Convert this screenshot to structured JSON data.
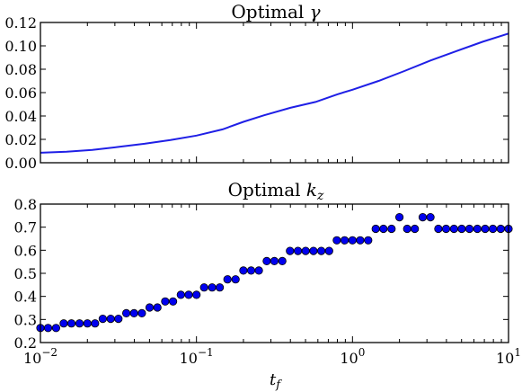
{
  "chart_data": [
    {
      "type": "line",
      "title": "Optimal γ",
      "title_text": "Optimal ",
      "title_symbol": "γ",
      "xscale": "log",
      "xlim": [
        0.01,
        10
      ],
      "ylim": [
        0.0,
        0.12
      ],
      "yticks": [
        0.0,
        0.02,
        0.04,
        0.06,
        0.08,
        0.1,
        0.12
      ],
      "ytick_labels": [
        "0.00",
        "0.02",
        "0.04",
        "0.06",
        "0.08",
        "0.10",
        "0.12"
      ],
      "line_color": "#1f1fe6",
      "series": [
        {
          "x": [
            0.01,
            0.0147,
            0.0215,
            0.0316,
            0.0464,
            0.0681,
            0.1,
            0.147,
            0.2,
            0.27,
            0.4,
            0.58,
            0.8,
            1.0,
            1.47,
            2.15,
            3.16,
            4.64,
            6.81,
            10
          ],
          "y": [
            0.0085,
            0.0095,
            0.011,
            0.0135,
            0.0162,
            0.0195,
            0.0232,
            0.0285,
            0.035,
            0.0405,
            0.047,
            0.052,
            0.0585,
            0.0625,
            0.07,
            0.0785,
            0.0875,
            0.0955,
            0.1035,
            0.1105
          ]
        }
      ]
    },
    {
      "type": "scatter",
      "title": "Optimal k_z",
      "title_text": "Optimal ",
      "title_symbol": "k",
      "title_sub": "z",
      "xlabel": "t",
      "xlabel_sub": "f",
      "xscale": "log",
      "xlim": [
        0.01,
        10
      ],
      "ylim": [
        0.2,
        0.8
      ],
      "yticks": [
        0.2,
        0.3,
        0.4,
        0.5,
        0.6,
        0.7,
        0.8
      ],
      "ytick_labels": [
        "0.2",
        "0.3",
        "0.4",
        "0.5",
        "0.6",
        "0.7",
        "0.8"
      ],
      "xticks": [
        0.01,
        0.1,
        1,
        10
      ],
      "xtick_labels": [
        {
          "base": "10",
          "exp": "−2"
        },
        {
          "base": "10",
          "exp": "−1"
        },
        {
          "base": "10",
          "exp": "0"
        },
        {
          "base": "10",
          "exp": "1"
        }
      ],
      "marker_color": "#0000ee",
      "series": [
        {
          "x": [
            0.01,
            0.0112,
            0.0126,
            0.0141,
            0.0158,
            0.0178,
            0.02,
            0.0224,
            0.0251,
            0.0282,
            0.0316,
            0.0355,
            0.0398,
            0.0447,
            0.0501,
            0.0562,
            0.0631,
            0.0708,
            0.0794,
            0.0891,
            0.1,
            0.112,
            0.126,
            0.141,
            0.158,
            0.178,
            0.2,
            0.224,
            0.251,
            0.282,
            0.316,
            0.355,
            0.398,
            0.447,
            0.501,
            0.562,
            0.631,
            0.708,
            0.794,
            0.891,
            1.0,
            1.12,
            1.26,
            1.41,
            1.58,
            1.78,
            2.0,
            2.24,
            2.51,
            2.82,
            3.16,
            3.55,
            3.98,
            4.47,
            5.01,
            5.62,
            6.31,
            7.08,
            7.94,
            8.91,
            10
          ],
          "y": [
            0.263,
            0.263,
            0.263,
            0.283,
            0.283,
            0.283,
            0.283,
            0.283,
            0.303,
            0.303,
            0.303,
            0.327,
            0.327,
            0.327,
            0.352,
            0.352,
            0.378,
            0.378,
            0.407,
            0.407,
            0.407,
            0.439,
            0.439,
            0.439,
            0.474,
            0.474,
            0.512,
            0.512,
            0.512,
            0.553,
            0.553,
            0.553,
            0.597,
            0.597,
            0.597,
            0.597,
            0.597,
            0.597,
            0.643,
            0.643,
            0.643,
            0.643,
            0.643,
            0.693,
            0.693,
            0.693,
            0.743,
            0.693,
            0.693,
            0.743,
            0.743,
            0.693,
            0.693,
            0.693,
            0.693,
            0.693,
            0.693,
            0.693,
            0.693,
            0.693,
            0.693
          ]
        }
      ]
    }
  ]
}
